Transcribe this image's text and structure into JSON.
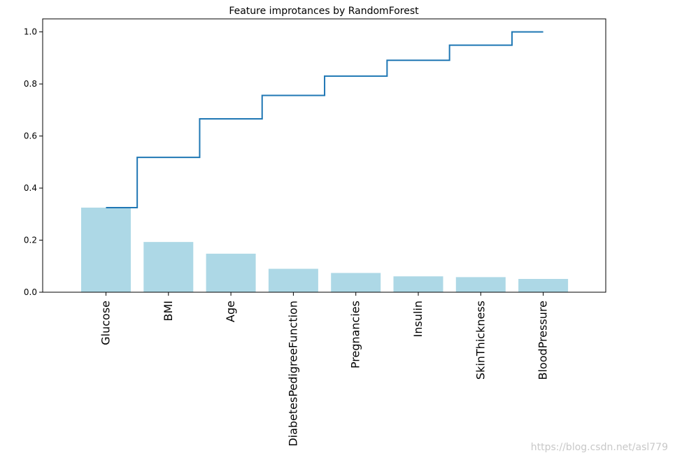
{
  "chart_data": {
    "type": "bar",
    "title": "Feature improtances by RandomForest",
    "xlabel": "",
    "ylabel": "",
    "categories": [
      "Glucose",
      "BMI",
      "Age",
      "DiabetesPedigreeFunction",
      "Pregnancies",
      "Insulin",
      "SkinThickness",
      "BloodPressure"
    ],
    "series": [
      {
        "kind": "bar",
        "values": [
          0.325,
          0.193,
          0.148,
          0.09,
          0.074,
          0.061,
          0.058,
          0.051
        ],
        "color": "#add8e6"
      },
      {
        "kind": "step",
        "values": [
          0.325,
          0.518,
          0.666,
          0.756,
          0.83,
          0.891,
          0.949,
          1.0
        ],
        "color": "#1f77b4"
      }
    ],
    "ylim": [
      0,
      1.05
    ],
    "yticks": [
      "0.0",
      "0.2",
      "0.4",
      "0.6",
      "0.8",
      "1.0"
    ],
    "grid": false,
    "legend": "none"
  },
  "watermark": "https://blog.csdn.net/asl779"
}
